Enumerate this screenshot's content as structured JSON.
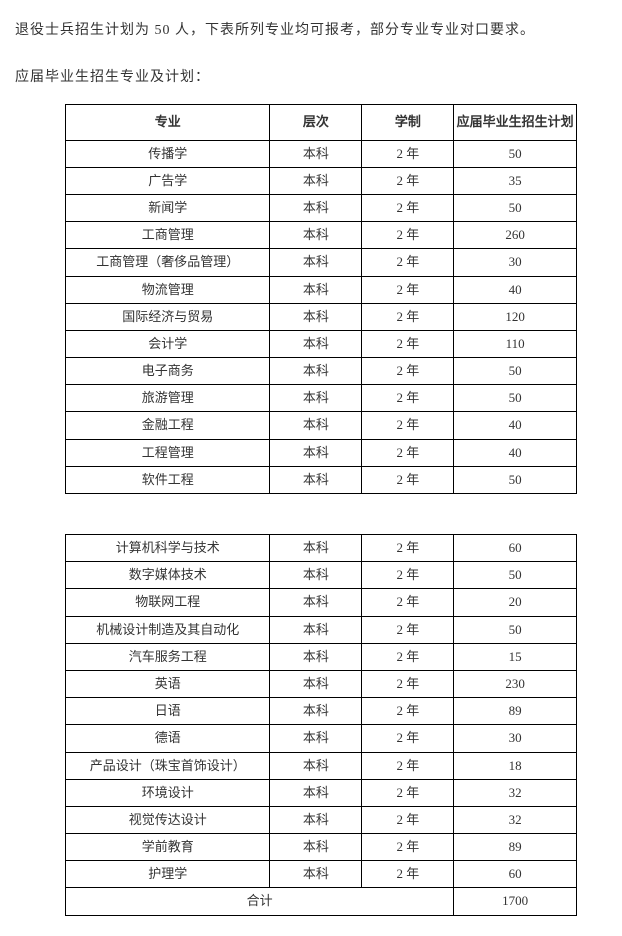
{
  "intro_text": "退役士兵招生计划为 50 人，下表所列专业均可报考，部分专业专业对口要求。",
  "section_title": "应届毕业生招生专业及计划：",
  "table": {
    "headers": {
      "major": "专业",
      "level": "层次",
      "duration": "学制",
      "plan": "应届毕业生招生计划"
    },
    "column_widths": {
      "major": "40%",
      "level": "18%",
      "duration": "18%",
      "plan": "24%"
    },
    "rows_part1": [
      {
        "major": "传播学",
        "level": "本科",
        "duration": "2 年",
        "plan": "50"
      },
      {
        "major": "广告学",
        "level": "本科",
        "duration": "2 年",
        "plan": "35"
      },
      {
        "major": "新闻学",
        "level": "本科",
        "duration": "2 年",
        "plan": "50"
      },
      {
        "major": "工商管理",
        "level": "本科",
        "duration": "2 年",
        "plan": "260"
      },
      {
        "major": "工商管理（奢侈品管理）",
        "level": "本科",
        "duration": "2 年",
        "plan": "30"
      },
      {
        "major": "物流管理",
        "level": "本科",
        "duration": "2 年",
        "plan": "40"
      },
      {
        "major": "国际经济与贸易",
        "level": "本科",
        "duration": "2 年",
        "plan": "120"
      },
      {
        "major": "会计学",
        "level": "本科",
        "duration": "2 年",
        "plan": "110"
      },
      {
        "major": "电子商务",
        "level": "本科",
        "duration": "2 年",
        "plan": "50"
      },
      {
        "major": "旅游管理",
        "level": "本科",
        "duration": "2 年",
        "plan": "50"
      },
      {
        "major": "金融工程",
        "level": "本科",
        "duration": "2 年",
        "plan": "40"
      },
      {
        "major": "工程管理",
        "level": "本科",
        "duration": "2 年",
        "plan": "40"
      },
      {
        "major": "软件工程",
        "level": "本科",
        "duration": "2 年",
        "plan": "50"
      }
    ],
    "rows_part2": [
      {
        "major": "计算机科学与技术",
        "level": "本科",
        "duration": "2 年",
        "plan": "60"
      },
      {
        "major": "数字媒体技术",
        "level": "本科",
        "duration": "2 年",
        "plan": "50"
      },
      {
        "major": "物联网工程",
        "level": "本科",
        "duration": "2 年",
        "plan": "20"
      },
      {
        "major": "机械设计制造及其自动化",
        "level": "本科",
        "duration": "2 年",
        "plan": "50"
      },
      {
        "major": "汽车服务工程",
        "level": "本科",
        "duration": "2 年",
        "plan": "15"
      },
      {
        "major": "英语",
        "level": "本科",
        "duration": "2 年",
        "plan": "230"
      },
      {
        "major": "日语",
        "level": "本科",
        "duration": "2 年",
        "plan": "89"
      },
      {
        "major": "德语",
        "level": "本科",
        "duration": "2 年",
        "plan": "30"
      },
      {
        "major": "产品设计（珠宝首饰设计）",
        "level": "本科",
        "duration": "2 年",
        "plan": "18"
      },
      {
        "major": "环境设计",
        "level": "本科",
        "duration": "2 年",
        "plan": "32"
      },
      {
        "major": "视觉传达设计",
        "level": "本科",
        "duration": "2 年",
        "plan": "32"
      },
      {
        "major": "学前教育",
        "level": "本科",
        "duration": "2 年",
        "plan": "89"
      },
      {
        "major": "护理学",
        "level": "本科",
        "duration": "2 年",
        "plan": "60"
      }
    ],
    "total": {
      "label": "合计",
      "value": "1700"
    }
  },
  "styling": {
    "body_font_family": "SimSun",
    "body_font_size": 14,
    "body_color": "#333333",
    "background_color": "#ffffff",
    "border_color": "#000000",
    "cell_font_size": 13,
    "header_font_weight": "bold",
    "letter_spacing": "1px"
  }
}
